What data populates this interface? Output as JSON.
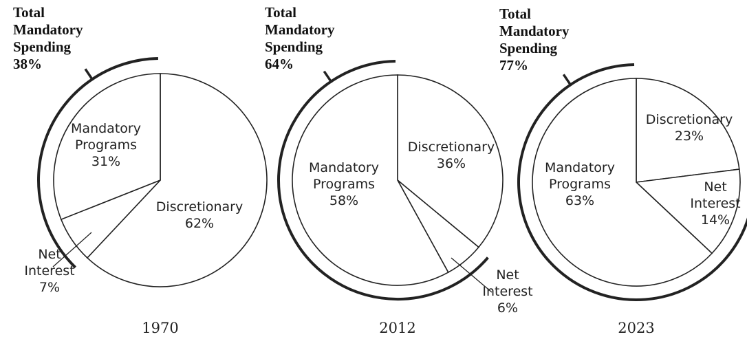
{
  "chart_data": [
    {
      "type": "pie",
      "title": "1970",
      "total_label": [
        "Total",
        "Mandatory",
        "Spending"
      ],
      "total_value": "38%",
      "slices": [
        {
          "label": [
            "Discretionary"
          ],
          "value": 62,
          "text": "62%"
        },
        {
          "label": [
            "Net",
            "Interest"
          ],
          "value": 7,
          "text": "7%"
        },
        {
          "label": [
            "Mandatory",
            "Programs"
          ],
          "value": 31,
          "text": "31%"
        }
      ]
    },
    {
      "type": "pie",
      "title": "2012",
      "total_label": [
        "Total",
        "Mandatory",
        "Spending"
      ],
      "total_value": "64%",
      "slices": [
        {
          "label": [
            "Discretionary"
          ],
          "value": 36,
          "text": "36%"
        },
        {
          "label": [
            "Net",
            "Interest"
          ],
          "value": 6,
          "text": "6%"
        },
        {
          "label": [
            "Mandatory",
            "Programs"
          ],
          "value": 58,
          "text": "58%"
        }
      ]
    },
    {
      "type": "pie",
      "title": "2023",
      "total_label": [
        "Total",
        "Mandatory",
        "Spending"
      ],
      "total_value": "77%",
      "slices": [
        {
          "label": [
            "Discretionary"
          ],
          "value": 23,
          "text": "23%"
        },
        {
          "label": [
            "Net",
            "Interest"
          ],
          "value": 14,
          "text": "14%"
        },
        {
          "label": [
            "Mandatory",
            "Programs"
          ],
          "value": 63,
          "text": "63%"
        }
      ]
    }
  ]
}
